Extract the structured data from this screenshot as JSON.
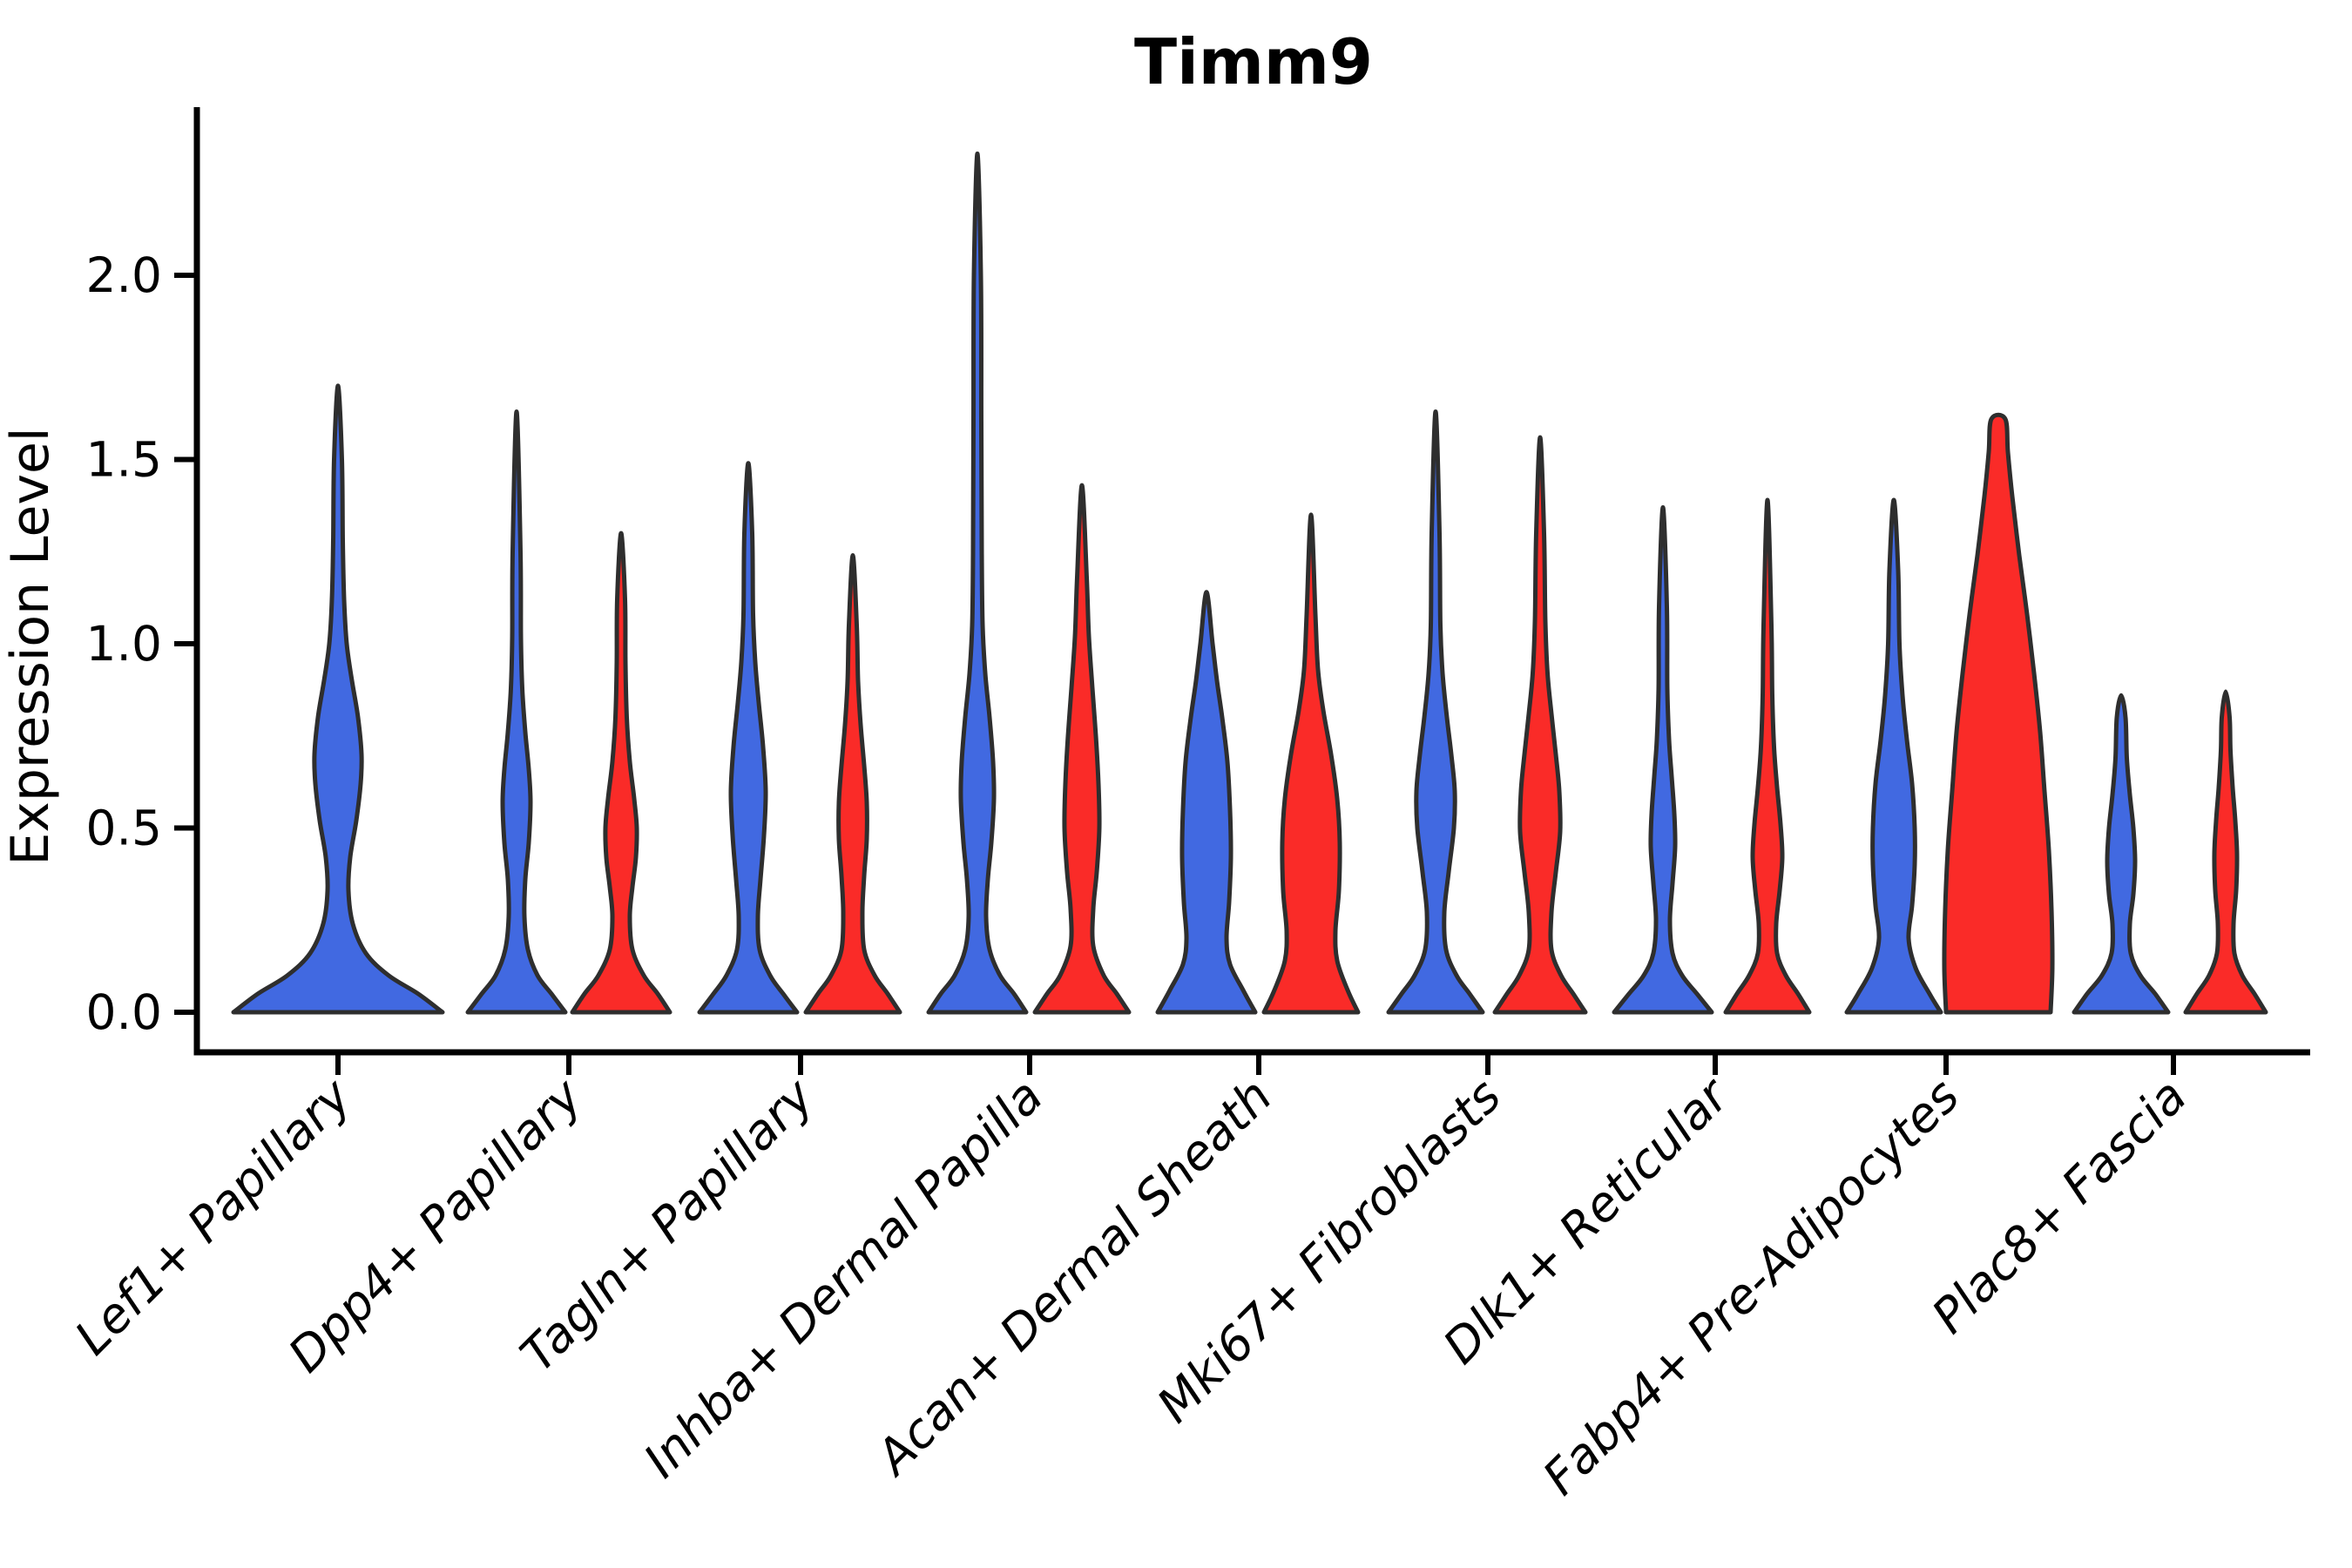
{
  "page": {
    "background": "#ffffff"
  },
  "chart_data": {
    "type": "violin",
    "title": "Timm9",
    "xlabel": "",
    "ylabel": "Expression Level",
    "grid": false,
    "legend_position": "none",
    "y_axis": {
      "tick_labels": [
        "0.0",
        "0.5",
        "1.0",
        "1.5",
        "2.0"
      ],
      "tick_values": [
        0.0,
        0.5,
        1.0,
        1.5,
        2.0
      ],
      "range": [
        -0.11,
        2.46
      ]
    },
    "categories": [
      "Lef1+ Papillary",
      "Dpp4+ Papillary",
      "Tagln+ Papillary",
      "Inhba+ Dermal Papilla",
      "Acan+ Dermal Sheath",
      "Mki67+ Fibroblasts",
      "Dlk1+ Reticular",
      "Fabp4+ Pre-Adipocytes",
      "Plac8+ Fascia"
    ],
    "series": [
      {
        "name": "blue",
        "fill_color": "#4169E1"
      },
      {
        "name": "red",
        "fill_color": "#FA2B28"
      }
    ],
    "outline_color": "#2e2e2e",
    "axis_color": "#000000",
    "violins": [
      {
        "category_index": 0,
        "category": "Lef1+ Papillary",
        "series": "blue",
        "single_full_width": true,
        "max_expression": 1.7,
        "density_profile": [
          [
            0,
            120
          ],
          [
            0.05,
            92
          ],
          [
            0.1,
            58
          ],
          [
            0.16,
            32
          ],
          [
            0.24,
            17
          ],
          [
            0.33,
            12
          ],
          [
            0.42,
            14
          ],
          [
            0.52,
            21
          ],
          [
            0.62,
            26
          ],
          [
            0.7,
            27
          ],
          [
            0.8,
            23
          ],
          [
            0.9,
            16
          ],
          [
            1.0,
            10
          ],
          [
            1.12,
            7
          ],
          [
            1.28,
            5.5
          ],
          [
            1.5,
            4.5
          ],
          [
            1.7,
            0
          ]
        ]
      },
      {
        "category_index": 1,
        "category": "Dpp4+ Papillary",
        "series": "blue",
        "single_full_width": false,
        "max_expression": 1.63,
        "density_profile": [
          [
            0,
            56
          ],
          [
            0.05,
            40
          ],
          [
            0.1,
            24
          ],
          [
            0.17,
            13
          ],
          [
            0.26,
            9
          ],
          [
            0.36,
            10
          ],
          [
            0.46,
            14
          ],
          [
            0.57,
            16
          ],
          [
            0.66,
            14
          ],
          [
            0.76,
            10
          ],
          [
            0.88,
            6.5
          ],
          [
            1.02,
            5
          ],
          [
            1.25,
            4.5
          ],
          [
            1.63,
            0
          ]
        ]
      },
      {
        "category_index": 1,
        "category": "Dpp4+ Papillary",
        "series": "red",
        "single_full_width": false,
        "max_expression": 1.3,
        "density_profile": [
          [
            0,
            56
          ],
          [
            0.05,
            42
          ],
          [
            0.1,
            26
          ],
          [
            0.17,
            13
          ],
          [
            0.26,
            10
          ],
          [
            0.34,
            13
          ],
          [
            0.42,
            17
          ],
          [
            0.5,
            18
          ],
          [
            0.58,
            15
          ],
          [
            0.68,
            10
          ],
          [
            0.8,
            6.5
          ],
          [
            0.95,
            5
          ],
          [
            1.12,
            4.5
          ],
          [
            1.3,
            0
          ]
        ]
      },
      {
        "category_index": 2,
        "category": "Tagln+ Papillary",
        "series": "blue",
        "single_full_width": false,
        "max_expression": 1.49,
        "density_profile": [
          [
            0,
            56
          ],
          [
            0.05,
            40
          ],
          [
            0.1,
            25
          ],
          [
            0.17,
            13
          ],
          [
            0.26,
            11
          ],
          [
            0.36,
            14
          ],
          [
            0.48,
            18
          ],
          [
            0.6,
            20
          ],
          [
            0.72,
            17
          ],
          [
            0.84,
            12
          ],
          [
            0.95,
            8
          ],
          [
            1.08,
            5.5
          ],
          [
            1.3,
            4.5
          ],
          [
            1.49,
            0
          ]
        ]
      },
      {
        "category_index": 2,
        "category": "Tagln+ Papillary",
        "series": "red",
        "single_full_width": false,
        "max_expression": 1.24,
        "density_profile": [
          [
            0,
            54
          ],
          [
            0.05,
            40
          ],
          [
            0.1,
            25
          ],
          [
            0.17,
            13
          ],
          [
            0.27,
            11
          ],
          [
            0.37,
            13
          ],
          [
            0.47,
            16
          ],
          [
            0.57,
            16
          ],
          [
            0.67,
            13
          ],
          [
            0.78,
            9
          ],
          [
            0.9,
            6
          ],
          [
            1.05,
            4.5
          ],
          [
            1.24,
            0
          ]
        ]
      },
      {
        "category_index": 3,
        "category": "Inhba+ Dermal Papilla",
        "series": "blue",
        "single_full_width": false,
        "max_expression": 2.33,
        "density_profile": [
          [
            0,
            56
          ],
          [
            0.05,
            42
          ],
          [
            0.1,
            26
          ],
          [
            0.17,
            14
          ],
          [
            0.26,
            10
          ],
          [
            0.36,
            12
          ],
          [
            0.46,
            16
          ],
          [
            0.58,
            19
          ],
          [
            0.68,
            18
          ],
          [
            0.8,
            14
          ],
          [
            0.92,
            9
          ],
          [
            1.05,
            6
          ],
          [
            1.25,
            5
          ],
          [
            1.6,
            4.5
          ],
          [
            2.0,
            4
          ],
          [
            2.33,
            0
          ]
        ]
      },
      {
        "category_index": 3,
        "category": "Inhba+ Dermal Papilla",
        "series": "red",
        "single_full_width": false,
        "max_expression": 1.43,
        "density_profile": [
          [
            0,
            54
          ],
          [
            0.05,
            40
          ],
          [
            0.1,
            25
          ],
          [
            0.18,
            13
          ],
          [
            0.28,
            13
          ],
          [
            0.38,
            17
          ],
          [
            0.5,
            20
          ],
          [
            0.62,
            19
          ],
          [
            0.75,
            16
          ],
          [
            0.88,
            12
          ],
          [
            1.02,
            8
          ],
          [
            1.18,
            5.5
          ],
          [
            1.43,
            0
          ]
        ]
      },
      {
        "category_index": 4,
        "category": "Acan+ Dermal Sheath",
        "series": "blue",
        "single_full_width": false,
        "max_expression": 1.14,
        "density_profile": [
          [
            0,
            56
          ],
          [
            0.06,
            42
          ],
          [
            0.13,
            27
          ],
          [
            0.2,
            23
          ],
          [
            0.3,
            26
          ],
          [
            0.42,
            28
          ],
          [
            0.55,
            27
          ],
          [
            0.68,
            24
          ],
          [
            0.8,
            18
          ],
          [
            0.9,
            12
          ],
          [
            1.0,
            7
          ],
          [
            1.14,
            0
          ]
        ]
      },
      {
        "category_index": 4,
        "category": "Acan+ Dermal Sheath",
        "series": "red",
        "single_full_width": false,
        "max_expression": 1.35,
        "density_profile": [
          [
            0,
            54
          ],
          [
            0.06,
            42
          ],
          [
            0.14,
            30
          ],
          [
            0.22,
            28
          ],
          [
            0.33,
            32
          ],
          [
            0.46,
            33
          ],
          [
            0.58,
            30
          ],
          [
            0.7,
            23
          ],
          [
            0.82,
            14
          ],
          [
            0.93,
            8
          ],
          [
            1.08,
            5
          ],
          [
            1.35,
            0
          ]
        ]
      },
      {
        "category_index": 5,
        "category": "Mki67+ Fibroblasts",
        "series": "blue",
        "single_full_width": false,
        "max_expression": 1.63,
        "density_profile": [
          [
            0,
            54
          ],
          [
            0.05,
            39
          ],
          [
            0.1,
            24
          ],
          [
            0.17,
            12
          ],
          [
            0.27,
            10
          ],
          [
            0.38,
            15
          ],
          [
            0.5,
            21
          ],
          [
            0.6,
            22
          ],
          [
            0.7,
            18
          ],
          [
            0.8,
            13
          ],
          [
            0.92,
            8
          ],
          [
            1.05,
            5.5
          ],
          [
            1.3,
            4.5
          ],
          [
            1.63,
            0
          ]
        ]
      },
      {
        "category_index": 5,
        "category": "Mki67+ Fibroblasts",
        "series": "red",
        "single_full_width": false,
        "max_expression": 1.56,
        "density_profile": [
          [
            0,
            52
          ],
          [
            0.05,
            38
          ],
          [
            0.1,
            24
          ],
          [
            0.17,
            13
          ],
          [
            0.27,
            13
          ],
          [
            0.38,
            18
          ],
          [
            0.49,
            23
          ],
          [
            0.6,
            22
          ],
          [
            0.7,
            18
          ],
          [
            0.81,
            13
          ],
          [
            0.92,
            8.5
          ],
          [
            1.06,
            6
          ],
          [
            1.3,
            4.5
          ],
          [
            1.56,
            0
          ]
        ]
      },
      {
        "category_index": 6,
        "category": "Dlk1+ Reticular",
        "series": "blue",
        "single_full_width": false,
        "max_expression": 1.37,
        "density_profile": [
          [
            0,
            56
          ],
          [
            0.05,
            39
          ],
          [
            0.1,
            22
          ],
          [
            0.16,
            11
          ],
          [
            0.25,
            8
          ],
          [
            0.35,
            11
          ],
          [
            0.45,
            14
          ],
          [
            0.54,
            13
          ],
          [
            0.64,
            10
          ],
          [
            0.74,
            7
          ],
          [
            0.88,
            5
          ],
          [
            1.1,
            4.5
          ],
          [
            1.37,
            0
          ]
        ]
      },
      {
        "category_index": 6,
        "category": "Dlk1+ Reticular",
        "series": "red",
        "single_full_width": false,
        "max_expression": 1.39,
        "density_profile": [
          [
            0,
            48
          ],
          [
            0.05,
            35
          ],
          [
            0.1,
            21
          ],
          [
            0.16,
            11
          ],
          [
            0.24,
            10
          ],
          [
            0.33,
            14
          ],
          [
            0.42,
            17
          ],
          [
            0.51,
            15
          ],
          [
            0.61,
            11
          ],
          [
            0.72,
            7.5
          ],
          [
            0.86,
            5.5
          ],
          [
            1.05,
            4.5
          ],
          [
            1.39,
            0
          ]
        ]
      },
      {
        "category_index": 7,
        "category": "Fabp4+ Pre-Adipocytes",
        "series": "blue",
        "single_full_width": false,
        "max_expression": 1.39,
        "density_profile": [
          [
            0,
            54
          ],
          [
            0.05,
            41
          ],
          [
            0.12,
            25
          ],
          [
            0.2,
            17
          ],
          [
            0.29,
            21
          ],
          [
            0.4,
            24
          ],
          [
            0.5,
            24
          ],
          [
            0.62,
            21
          ],
          [
            0.74,
            15
          ],
          [
            0.86,
            10
          ],
          [
            1.0,
            6.5
          ],
          [
            1.2,
            5
          ],
          [
            1.39,
            0
          ]
        ]
      },
      {
        "category_index": 7,
        "category": "Fabp4+ Pre-Adipocytes",
        "series": "red",
        "single_full_width": false,
        "max_expression": 1.61,
        "density_profile": [
          [
            0,
            60
          ],
          [
            0.12,
            62
          ],
          [
            0.28,
            61
          ],
          [
            0.44,
            58
          ],
          [
            0.6,
            53
          ],
          [
            0.76,
            48
          ],
          [
            0.92,
            41
          ],
          [
            1.08,
            33
          ],
          [
            1.24,
            24
          ],
          [
            1.4,
            16
          ],
          [
            1.52,
            11
          ],
          [
            1.61,
            8
          ]
        ]
      },
      {
        "category_index": 8,
        "category": "Plac8+ Fascia",
        "series": "blue",
        "single_full_width": false,
        "max_expression": 0.86,
        "density_profile": [
          [
            0,
            54
          ],
          [
            0.05,
            39
          ],
          [
            0.1,
            22
          ],
          [
            0.16,
            11
          ],
          [
            0.24,
            10
          ],
          [
            0.32,
            14
          ],
          [
            0.41,
            16
          ],
          [
            0.5,
            14
          ],
          [
            0.59,
            10
          ],
          [
            0.69,
            6.5
          ],
          [
            0.8,
            5
          ],
          [
            0.86,
            0
          ]
        ]
      },
      {
        "category_index": 8,
        "category": "Plac8+ Fascia",
        "series": "red",
        "single_full_width": false,
        "max_expression": 0.87,
        "density_profile": [
          [
            0,
            46
          ],
          [
            0.05,
            33
          ],
          [
            0.1,
            19
          ],
          [
            0.16,
            10
          ],
          [
            0.24,
            9
          ],
          [
            0.33,
            12
          ],
          [
            0.43,
            13
          ],
          [
            0.52,
            11
          ],
          [
            0.61,
            8
          ],
          [
            0.71,
            5.5
          ],
          [
            0.8,
            4.5
          ],
          [
            0.87,
            0
          ]
        ]
      }
    ]
  }
}
